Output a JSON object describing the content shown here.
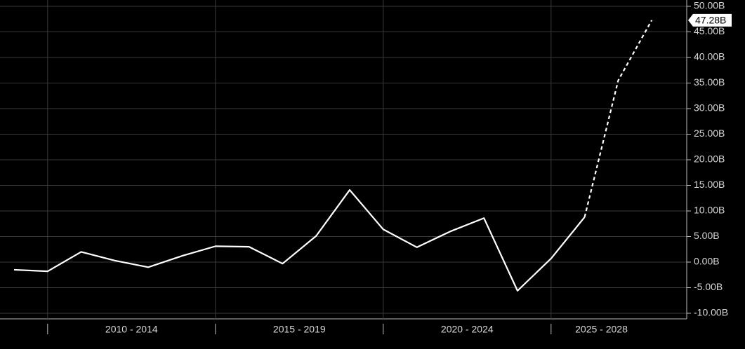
{
  "chart_data": {
    "type": "line",
    "categories": [
      null,
      null,
      null,
      null,
      null,
      null,
      null,
      null,
      null,
      null,
      null,
      null,
      null,
      null,
      null,
      null,
      null,
      null,
      null,
      null
    ],
    "groups": [
      {
        "label": "2010 - 2014",
        "from": 1,
        "to": 6
      },
      {
        "label": "2015 - 2019",
        "from": 6,
        "to": 11
      },
      {
        "label": "2020 - 2024",
        "from": 11,
        "to": 16
      },
      {
        "label": "2025 - 2028",
        "from": 16,
        "to": 19
      }
    ],
    "series": [
      {
        "color": "#ffffff",
        "dashed": false,
        "values": [
          -1.5,
          -1.8,
          2.0,
          0.3,
          -1.0,
          1.2,
          3.1,
          3.0,
          -0.3,
          5.1,
          14.1,
          6.4,
          2.9,
          6.0,
          8.6,
          -5.6,
          0.7,
          8.8,
          null,
          null
        ]
      },
      {
        "color": "#ffffff",
        "dashed": true,
        "values": [
          null,
          null,
          null,
          null,
          null,
          null,
          null,
          null,
          null,
          null,
          null,
          null,
          null,
          null,
          null,
          null,
          null,
          8.8,
          35.5,
          47.28
        ]
      }
    ],
    "last_value_label": "47.28B",
    "ylim": [
      -10,
      50
    ],
    "yticks": [
      {
        "value": -10,
        "label": "-10.00B"
      },
      {
        "value": -5,
        "label": "-5.00B"
      },
      {
        "value": 0,
        "label": "0.00B"
      },
      {
        "value": 5,
        "label": "5.00B"
      },
      {
        "value": 10,
        "label": "10.00B"
      },
      {
        "value": 15,
        "label": "15.00B"
      },
      {
        "value": 20,
        "label": "20.00B"
      },
      {
        "value": 25,
        "label": "25.00B"
      },
      {
        "value": 30,
        "label": "30.00B"
      },
      {
        "value": 35,
        "label": "35.00B"
      },
      {
        "value": 40,
        "label": "40.00B"
      },
      {
        "value": 45,
        "label": "45.00B"
      },
      {
        "value": 50,
        "label": "50.00B"
      }
    ],
    "grid": true
  }
}
